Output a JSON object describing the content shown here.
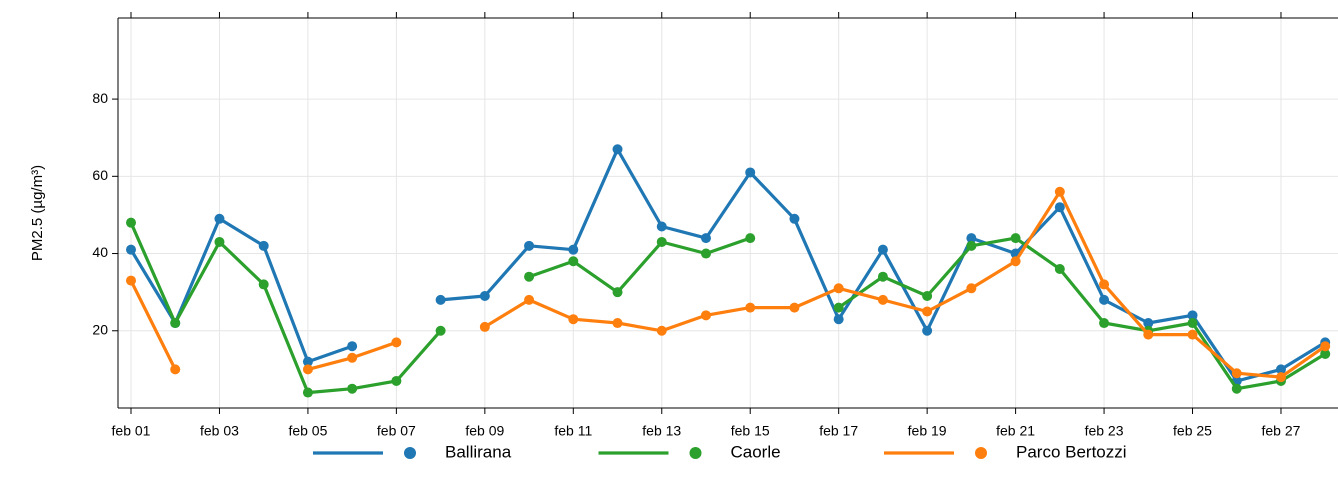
{
  "chart_data": {
    "type": "line",
    "y_label": "PM2.5 (µg/m³)",
    "categories": [
      "feb 01",
      null,
      "feb 03",
      null,
      "feb 05",
      null,
      "feb 07",
      null,
      "feb 09",
      null,
      "feb 11",
      null,
      "feb 13",
      null,
      "feb 15",
      null,
      "feb 17",
      null,
      "feb 19",
      null,
      "feb 21",
      null,
      "feb 23",
      null,
      "feb 25",
      null,
      "feb 27",
      null
    ],
    "series": [
      {
        "name": "Ballirana",
        "color": "#1f77b4",
        "values": [
          41,
          22,
          49,
          42,
          12,
          16,
          null,
          28,
          29,
          42,
          41,
          67,
          47,
          44,
          61,
          49,
          23,
          41,
          20,
          44,
          40,
          52,
          28,
          22,
          24,
          7,
          10,
          17
        ]
      },
      {
        "name": "Caorle",
        "color": "#2ca02c",
        "values": [
          48,
          22,
          43,
          32,
          4,
          5,
          7,
          20,
          null,
          34,
          38,
          30,
          43,
          40,
          44,
          null,
          26,
          34,
          29,
          42,
          44,
          36,
          22,
          20,
          22,
          5,
          7,
          14
        ]
      },
      {
        "name": "Parco Bertozzi",
        "color": "#ff7f0e",
        "values": [
          33,
          10,
          null,
          null,
          10,
          13,
          17,
          null,
          21,
          28,
          23,
          22,
          20,
          24,
          26,
          26,
          31,
          28,
          25,
          31,
          38,
          56,
          32,
          19,
          19,
          9,
          8,
          16
        ]
      }
    ],
    "ylim": [
      0,
      101
    ],
    "yticks": [
      20,
      40,
      60,
      80
    ],
    "grid": true,
    "legend": "bottom"
  }
}
